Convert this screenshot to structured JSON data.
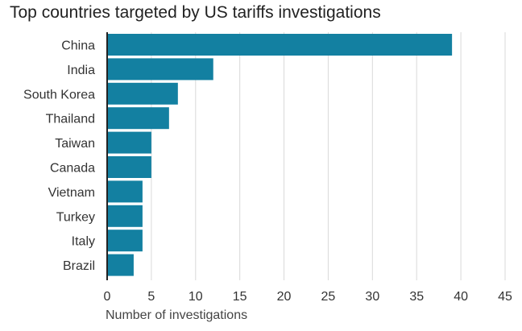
{
  "chart_data": {
    "type": "bar",
    "orientation": "horizontal",
    "title": "Top countries targeted by US tariffs investigations",
    "xlabel": "Number of investigations",
    "ylabel": "",
    "categories": [
      "China",
      "India",
      "South Korea",
      "Thailand",
      "Taiwan",
      "Canada",
      "Vietnam",
      "Turkey",
      "Italy",
      "Brazil"
    ],
    "values": [
      39,
      12,
      8,
      7,
      5,
      5,
      4,
      4,
      4,
      3
    ],
    "xlim": [
      0,
      45
    ],
    "xticks": [
      0,
      5,
      10,
      15,
      20,
      25,
      30,
      35,
      40,
      45
    ],
    "grid": "vertical",
    "bar_color": "#1380a1"
  }
}
